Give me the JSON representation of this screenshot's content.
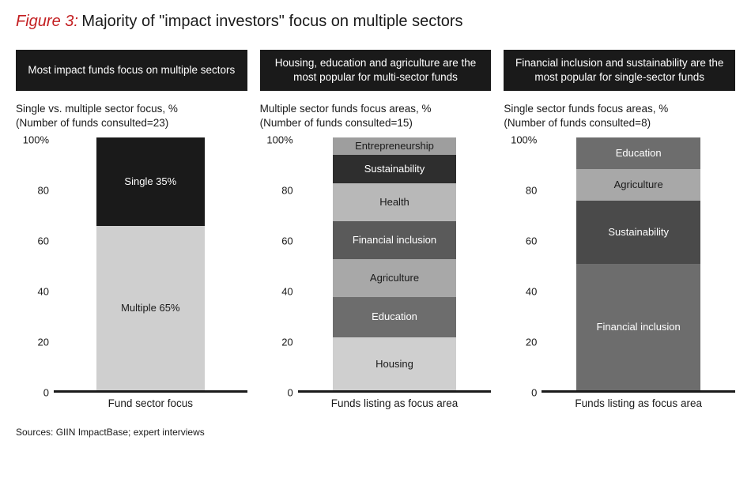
{
  "figure": {
    "label": "Figure 3:",
    "title": "Majority of \"impact investors\" focus on multiple sectors",
    "label_color": "#c31f21",
    "title_fontsize": 20
  },
  "axis": {
    "ticks": [
      0,
      20,
      40,
      60,
      80,
      100
    ],
    "top_label": "100%",
    "ymax": 100
  },
  "panels": [
    {
      "header": "Most impact funds focus on multiple sectors",
      "sub_line1": "Single vs. multiple sector focus, %",
      "sub_line2": "(Number of funds consulted=23)",
      "x_label": "Fund sector focus",
      "bar": {
        "left_pct": 22,
        "width_pct": 56
      },
      "segments": [
        {
          "label": "Multiple 65%",
          "value": 65,
          "bg": "#cfcfcf",
          "fg": "#1a1a1a"
        },
        {
          "label": "Single 35%",
          "value": 35,
          "bg": "#1a1a1a",
          "fg": "#ffffff"
        }
      ]
    },
    {
      "header": "Housing, education and agriculture are the most popular for multi-sector funds",
      "sub_line1": "Multiple sector funds focus areas, %",
      "sub_line2": "(Number of funds consulted=15)",
      "x_label": "Funds listing as focus area",
      "bar": {
        "left_pct": 18,
        "width_pct": 64
      },
      "segments": [
        {
          "label": "Housing",
          "value": 21,
          "bg": "#cfcfcf",
          "fg": "#1a1a1a"
        },
        {
          "label": "Education",
          "value": 16,
          "bg": "#6d6d6d",
          "fg": "#ffffff"
        },
        {
          "label": "Agriculture",
          "value": 15,
          "bg": "#a8a8a8",
          "fg": "#1a1a1a"
        },
        {
          "label": "Financial inclusion",
          "value": 15,
          "bg": "#5a5a5a",
          "fg": "#ffffff"
        },
        {
          "label": "Health",
          "value": 15,
          "bg": "#b8b8b8",
          "fg": "#1a1a1a"
        },
        {
          "label": "Sustainability",
          "value": 11,
          "bg": "#2e2e2e",
          "fg": "#ffffff"
        },
        {
          "label": "Entrepreneurship",
          "value": 7,
          "bg": "#9e9e9e",
          "fg": "#1a1a1a"
        }
      ]
    },
    {
      "header": "Financial inclusion and sustainability are the most popular for single-sector funds",
      "sub_line1": "Single sector funds focus areas, %",
      "sub_line2": "(Number of funds consulted=8)",
      "x_label": "Funds listing as focus area",
      "bar": {
        "left_pct": 18,
        "width_pct": 64
      },
      "segments": [
        {
          "label": "Financial inclusion",
          "value": 50,
          "bg": "#6d6d6d",
          "fg": "#ffffff"
        },
        {
          "label": "Sustainability",
          "value": 25,
          "bg": "#4a4a4a",
          "fg": "#ffffff"
        },
        {
          "label": "Agriculture",
          "value": 12.5,
          "bg": "#a8a8a8",
          "fg": "#1a1a1a"
        },
        {
          "label": "Education",
          "value": 12.5,
          "bg": "#6d6d6d",
          "fg": "#ffffff"
        }
      ]
    }
  ],
  "sources": "Sources: GIIN ImpactBase; expert interviews"
}
